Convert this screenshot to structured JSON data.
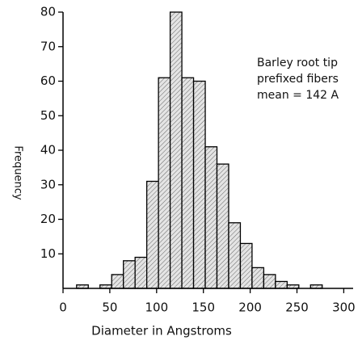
{
  "chart_data": {
    "type": "histogram",
    "xlabel": "Diameter in Angstroms",
    "ylabel": "Frequency",
    "annotation": [
      "Barley root tip",
      "prefixed fibers",
      "mean = 142 A"
    ],
    "bins": [
      14.5,
      27,
      39.5,
      52,
      64.5,
      77,
      89.5,
      102,
      114.5,
      127,
      139.5,
      152,
      164.5,
      177,
      189.5,
      202,
      214.5,
      227,
      239.5,
      252,
      264.5,
      277,
      289.5
    ],
    "counts": [
      1,
      0,
      1,
      4,
      8,
      9,
      31,
      61,
      80,
      61,
      60,
      41,
      36,
      19,
      13,
      6,
      4,
      2,
      1,
      0,
      1,
      0
    ],
    "color": "#000000",
    "xlim": [
      0,
      310
    ],
    "xticks": [
      0,
      50,
      100,
      150,
      200,
      250,
      300
    ],
    "ylim": [
      0,
      80
    ],
    "yticks": [
      10,
      20,
      30,
      40,
      50,
      60,
      70,
      80
    ]
  }
}
